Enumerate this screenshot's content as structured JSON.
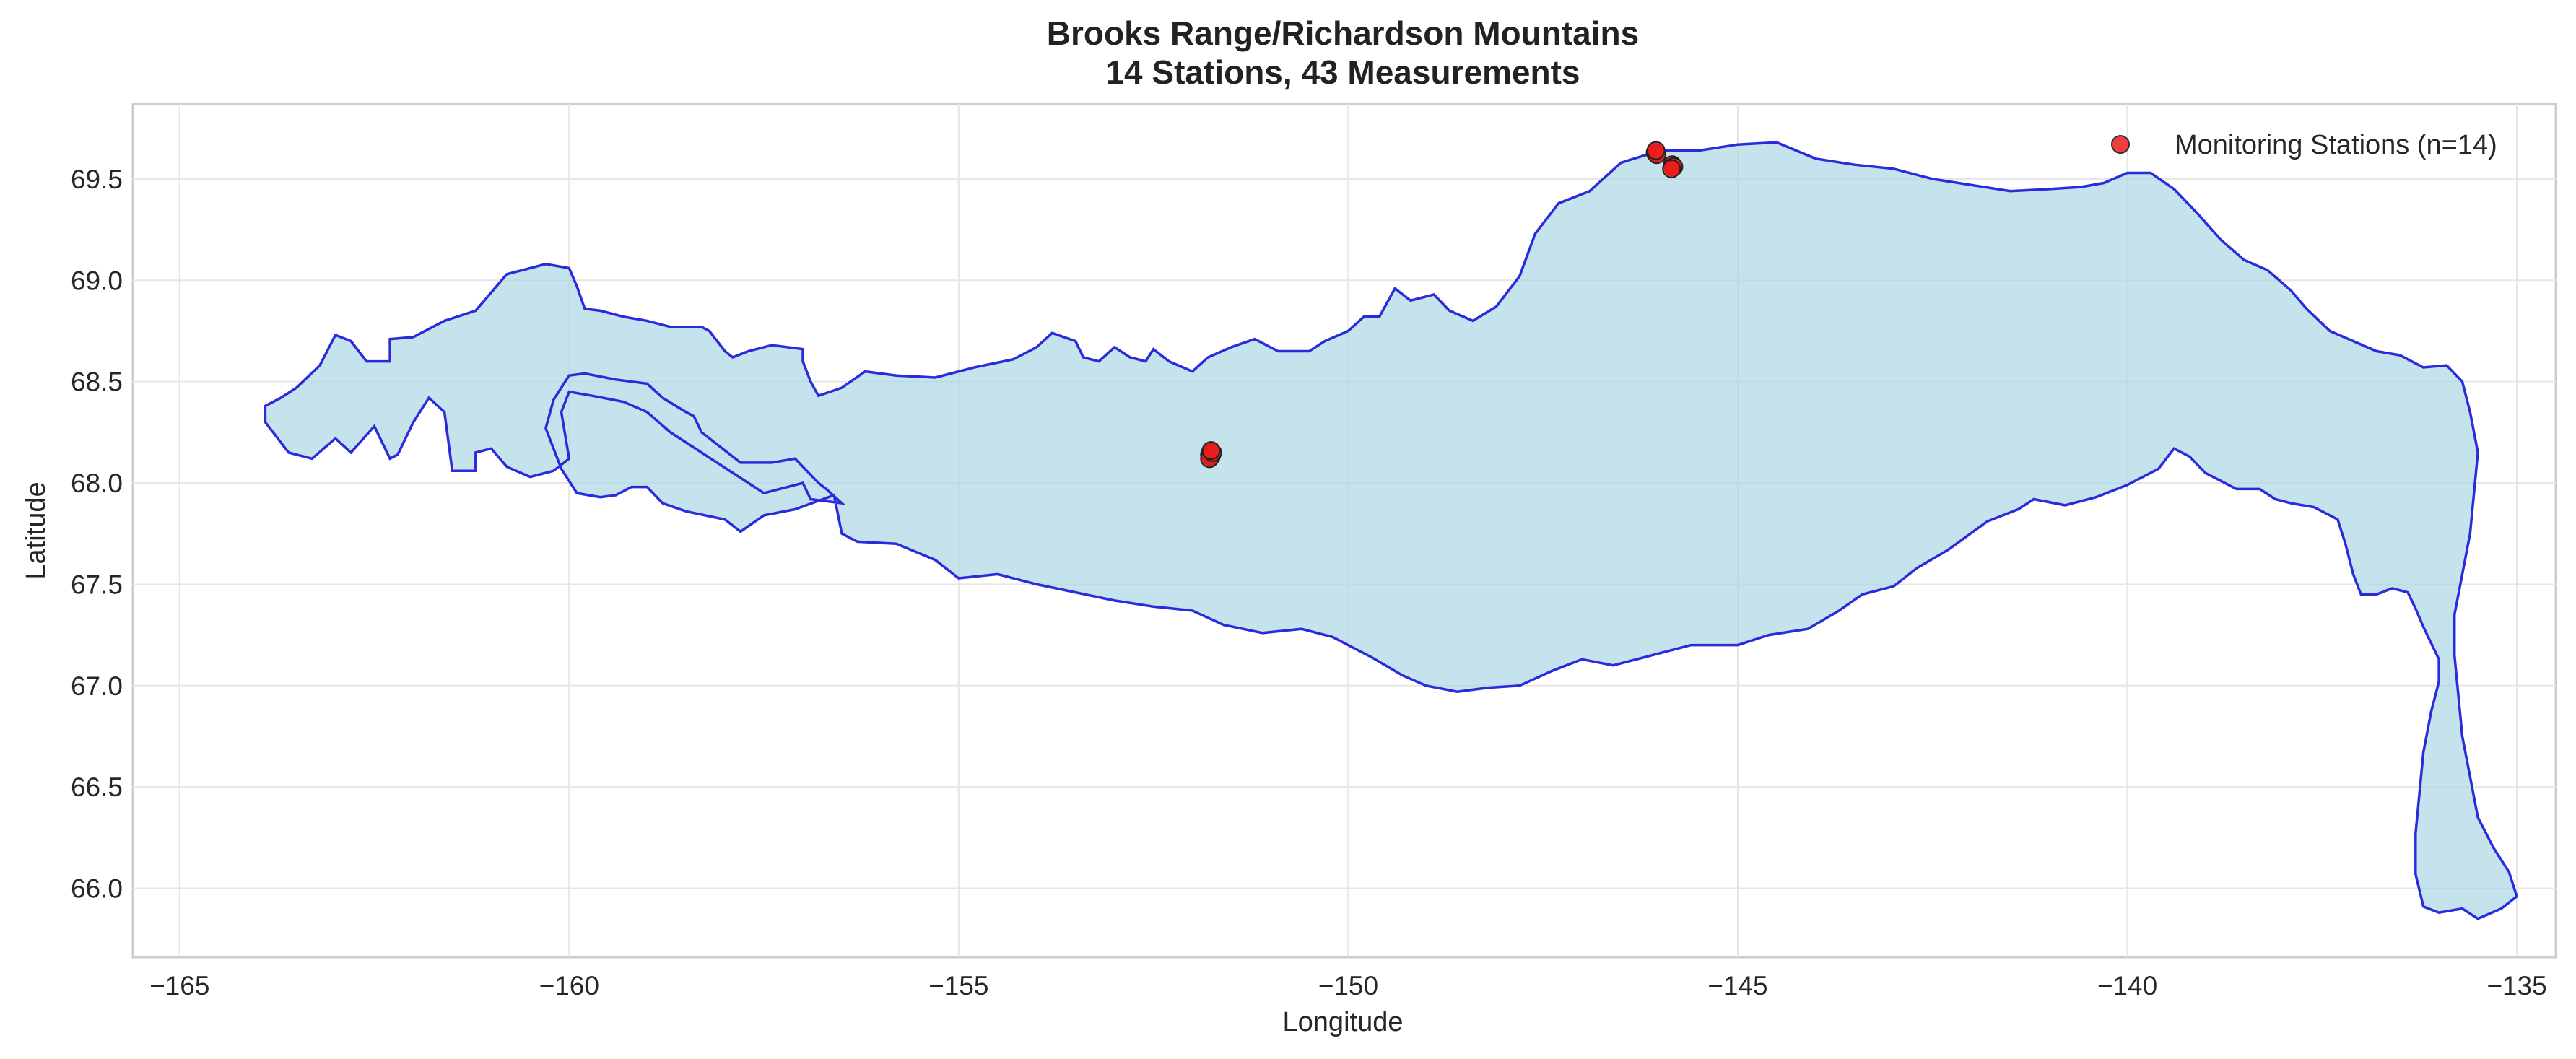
{
  "chart_data": {
    "type": "scatter",
    "title": "Brooks Range/Richardson Mountains",
    "subtitle": "14 Stations, 43 Measurements",
    "xlabel": "Longitude",
    "ylabel": "Latitude",
    "xlim": [
      -165.6,
      -134.5
    ],
    "ylim": [
      65.66,
      69.87
    ],
    "xticks": [
      -165,
      -160,
      -155,
      -150,
      -145,
      -140,
      -135
    ],
    "xtick_labels": [
      "−165",
      "−160",
      "−155",
      "−150",
      "−145",
      "−140",
      "−135"
    ],
    "yticks": [
      66.0,
      66.5,
      67.0,
      67.5,
      68.0,
      68.5,
      69.0,
      69.5
    ],
    "ytick_labels": [
      "66.0",
      "66.5",
      "67.0",
      "67.5",
      "68.0",
      "68.5",
      "69.0",
      "69.5"
    ],
    "grid": true,
    "legend_position": "upper-right",
    "series": [
      {
        "name": "Monitoring Stations (n=14)",
        "color": "#ee1c1c",
        "points": [
          {
            "lon": -146.06,
            "lat": 69.63
          },
          {
            "lon": -146.04,
            "lat": 69.62
          },
          {
            "lon": -145.84,
            "lat": 69.57
          },
          {
            "lon": -145.83,
            "lat": 69.56
          },
          {
            "lon": -145.82,
            "lat": 69.56
          },
          {
            "lon": -151.78,
            "lat": 68.14
          },
          {
            "lon": -151.77,
            "lat": 68.15
          },
          {
            "lon": -151.76,
            "lat": 68.13
          },
          {
            "lon": -151.75,
            "lat": 68.14
          },
          {
            "lon": -151.78,
            "lat": 68.12
          },
          {
            "lon": -151.74,
            "lat": 68.15
          },
          {
            "lon": -146.05,
            "lat": 69.64
          },
          {
            "lon": -145.85,
            "lat": 69.55
          },
          {
            "lon": -151.76,
            "lat": 68.16
          }
        ]
      }
    ],
    "region": {
      "fill_color": "#add8e6",
      "edge_color": "#2b2bdc",
      "boundary": [
        [
          -163.9,
          68.3
        ],
        [
          -163.6,
          68.15
        ],
        [
          -163.3,
          68.12
        ],
        [
          -163.0,
          68.22
        ],
        [
          -162.8,
          68.15
        ],
        [
          -162.5,
          68.28
        ],
        [
          -162.3,
          68.12
        ],
        [
          -162.2,
          68.14
        ],
        [
          -162.0,
          68.3
        ],
        [
          -161.8,
          68.42
        ],
        [
          -161.6,
          68.35
        ],
        [
          -161.5,
          68.06
        ],
        [
          -161.2,
          68.06
        ],
        [
          -161.2,
          68.15
        ],
        [
          -161.0,
          68.17
        ],
        [
          -160.8,
          68.08
        ],
        [
          -160.5,
          68.03
        ],
        [
          -160.2,
          68.06
        ],
        [
          -160.0,
          68.12
        ],
        [
          -160.1,
          68.35
        ],
        [
          -160.0,
          68.45
        ],
        [
          -159.7,
          68.43
        ],
        [
          -159.3,
          68.4
        ],
        [
          -159.0,
          68.35
        ],
        [
          -158.7,
          68.25
        ],
        [
          -158.3,
          68.15
        ],
        [
          -157.9,
          68.05
        ],
        [
          -157.5,
          67.95
        ],
        [
          -157.0,
          68.0
        ],
        [
          -156.9,
          67.92
        ],
        [
          -156.5,
          67.9
        ],
        [
          -156.7,
          67.97
        ],
        [
          -156.8,
          68.0
        ],
        [
          -157.1,
          68.12
        ],
        [
          -157.4,
          68.1
        ],
        [
          -157.8,
          68.1
        ],
        [
          -158.3,
          68.25
        ],
        [
          -158.4,
          68.33
        ],
        [
          -158.5,
          68.35
        ],
        [
          -158.8,
          68.42
        ],
        [
          -159.0,
          68.49
        ],
        [
          -159.4,
          68.51
        ],
        [
          -159.8,
          68.54
        ],
        [
          -160.0,
          68.53
        ],
        [
          -160.2,
          68.41
        ],
        [
          -160.3,
          68.27
        ],
        [
          -160.1,
          68.07
        ],
        [
          -159.9,
          67.95
        ],
        [
          -159.6,
          67.93
        ],
        [
          -159.4,
          67.94
        ],
        [
          -159.2,
          67.98
        ],
        [
          -159.0,
          67.98
        ],
        [
          -158.8,
          67.9
        ],
        [
          -158.5,
          67.86
        ],
        [
          -158.0,
          67.82
        ],
        [
          -157.8,
          67.76
        ],
        [
          -157.5,
          67.84
        ],
        [
          -157.1,
          67.87
        ],
        [
          -156.6,
          67.94
        ],
        [
          -156.5,
          67.75
        ],
        [
          -156.3,
          67.71
        ],
        [
          -155.8,
          67.7
        ],
        [
          -155.3,
          67.62
        ],
        [
          -155.0,
          67.53
        ],
        [
          -154.5,
          67.55
        ],
        [
          -154.0,
          67.5
        ],
        [
          -153.5,
          67.46
        ],
        [
          -153.0,
          67.42
        ],
        [
          -152.5,
          67.39
        ],
        [
          -152.0,
          67.37
        ],
        [
          -151.6,
          67.3
        ],
        [
          -151.1,
          67.26
        ],
        [
          -150.6,
          67.28
        ],
        [
          -150.2,
          67.24
        ],
        [
          -149.7,
          67.14
        ],
        [
          -149.3,
          67.05
        ],
        [
          -149.0,
          67.0
        ],
        [
          -148.6,
          66.97
        ],
        [
          -148.2,
          66.99
        ],
        [
          -147.8,
          67.0
        ],
        [
          -147.4,
          67.07
        ],
        [
          -147.0,
          67.13
        ],
        [
          -146.6,
          67.1
        ],
        [
          -146.1,
          67.15
        ],
        [
          -145.6,
          67.2
        ],
        [
          -145.0,
          67.2
        ],
        [
          -144.6,
          67.25
        ],
        [
          -144.1,
          67.28
        ],
        [
          -143.7,
          67.37
        ],
        [
          -143.4,
          67.45
        ],
        [
          -143.0,
          67.49
        ],
        [
          -142.7,
          67.58
        ],
        [
          -142.3,
          67.67
        ],
        [
          -141.8,
          67.81
        ],
        [
          -141.4,
          67.87
        ],
        [
          -141.2,
          67.92
        ],
        [
          -140.8,
          67.89
        ],
        [
          -140.4,
          67.93
        ],
        [
          -140.0,
          67.99
        ],
        [
          -139.6,
          68.07
        ],
        [
          -139.4,
          68.17
        ],
        [
          -139.2,
          68.13
        ],
        [
          -139.0,
          68.05
        ],
        [
          -138.8,
          68.01
        ],
        [
          -138.6,
          67.97
        ],
        [
          -138.3,
          67.97
        ],
        [
          -138.1,
          67.92
        ],
        [
          -137.9,
          67.9
        ],
        [
          -137.6,
          67.88
        ],
        [
          -137.3,
          67.82
        ],
        [
          -137.2,
          67.7
        ],
        [
          -137.1,
          67.55
        ],
        [
          -137.0,
          67.45
        ],
        [
          -136.8,
          67.45
        ],
        [
          -136.6,
          67.48
        ],
        [
          -136.4,
          67.46
        ],
        [
          -136.3,
          67.38
        ],
        [
          -136.2,
          67.29
        ],
        [
          -136.1,
          67.21
        ],
        [
          -136.0,
          67.13
        ],
        [
          -136.0,
          67.02
        ],
        [
          -136.1,
          66.87
        ],
        [
          -136.2,
          66.67
        ],
        [
          -136.25,
          66.47
        ],
        [
          -136.3,
          66.27
        ],
        [
          -136.3,
          66.07
        ],
        [
          -136.2,
          65.91
        ],
        [
          -136.0,
          65.88
        ],
        [
          -135.7,
          65.9
        ],
        [
          -135.5,
          65.85
        ],
        [
          -135.2,
          65.9
        ],
        [
          -135.0,
          65.96
        ],
        [
          -135.1,
          66.08
        ],
        [
          -135.3,
          66.2
        ],
        [
          -135.5,
          66.35
        ],
        [
          -135.6,
          66.55
        ],
        [
          -135.7,
          66.75
        ],
        [
          -135.75,
          66.95
        ],
        [
          -135.8,
          67.15
        ],
        [
          -135.8,
          67.35
        ],
        [
          -135.7,
          67.55
        ],
        [
          -135.6,
          67.75
        ],
        [
          -135.55,
          67.95
        ],
        [
          -135.5,
          68.15
        ],
        [
          -135.6,
          68.35
        ],
        [
          -135.7,
          68.5
        ],
        [
          -135.9,
          68.58
        ],
        [
          -136.2,
          68.57
        ],
        [
          -136.5,
          68.63
        ],
        [
          -136.8,
          68.65
        ],
        [
          -137.1,
          68.7
        ],
        [
          -137.4,
          68.75
        ],
        [
          -137.7,
          68.86
        ],
        [
          -137.9,
          68.95
        ],
        [
          -138.2,
          69.05
        ],
        [
          -138.5,
          69.1
        ],
        [
          -138.8,
          69.2
        ],
        [
          -139.1,
          69.33
        ],
        [
          -139.4,
          69.45
        ],
        [
          -139.7,
          69.53
        ],
        [
          -140.0,
          69.53
        ],
        [
          -140.3,
          69.48
        ],
        [
          -140.6,
          69.46
        ],
        [
          -141.0,
          69.45
        ],
        [
          -141.5,
          69.44
        ],
        [
          -142.0,
          69.47
        ],
        [
          -142.5,
          69.5
        ],
        [
          -143.0,
          69.55
        ],
        [
          -143.5,
          69.57
        ],
        [
          -144.0,
          69.6
        ],
        [
          -144.5,
          69.68
        ],
        [
          -145.0,
          69.67
        ],
        [
          -145.5,
          69.64
        ],
        [
          -146.0,
          69.64
        ],
        [
          -146.5,
          69.58
        ],
        [
          -146.9,
          69.44
        ],
        [
          -147.3,
          69.38
        ],
        [
          -147.6,
          69.23
        ],
        [
          -147.8,
          69.02
        ],
        [
          -148.1,
          68.87
        ],
        [
          -148.4,
          68.8
        ],
        [
          -148.7,
          68.85
        ],
        [
          -148.9,
          68.93
        ],
        [
          -149.2,
          68.9
        ],
        [
          -149.4,
          68.96
        ],
        [
          -149.6,
          68.82
        ],
        [
          -149.8,
          68.82
        ],
        [
          -150.0,
          68.75
        ],
        [
          -150.3,
          68.7
        ],
        [
          -150.5,
          68.65
        ],
        [
          -150.9,
          68.65
        ],
        [
          -151.2,
          68.71
        ],
        [
          -151.5,
          68.67
        ],
        [
          -151.8,
          68.62
        ],
        [
          -152.0,
          68.55
        ],
        [
          -152.3,
          68.6
        ],
        [
          -152.5,
          68.66
        ],
        [
          -152.6,
          68.6
        ],
        [
          -152.8,
          68.62
        ],
        [
          -153.0,
          68.67
        ],
        [
          -153.2,
          68.6
        ],
        [
          -153.4,
          68.62
        ],
        [
          -153.5,
          68.7
        ],
        [
          -153.8,
          68.74
        ],
        [
          -154.0,
          68.67
        ],
        [
          -154.3,
          68.61
        ],
        [
          -154.8,
          68.57
        ],
        [
          -155.3,
          68.52
        ],
        [
          -155.8,
          68.53
        ],
        [
          -156.2,
          68.55
        ],
        [
          -156.5,
          68.47
        ],
        [
          -156.8,
          68.43
        ],
        [
          -156.9,
          68.5
        ],
        [
          -157.0,
          68.6
        ],
        [
          -157.0,
          68.66
        ],
        [
          -157.4,
          68.68
        ],
        [
          -157.7,
          68.65
        ],
        [
          -157.9,
          68.62
        ],
        [
          -158.0,
          68.65
        ],
        [
          -158.2,
          68.75
        ],
        [
          -158.3,
          68.77
        ],
        [
          -158.7,
          68.77
        ],
        [
          -159.0,
          68.8
        ],
        [
          -159.3,
          68.82
        ],
        [
          -159.6,
          68.85
        ],
        [
          -159.8,
          68.86
        ],
        [
          -159.9,
          68.97
        ],
        [
          -160.0,
          69.06
        ],
        [
          -160.3,
          69.08
        ],
        [
          -160.5,
          69.06
        ],
        [
          -160.8,
          69.03
        ],
        [
          -161.0,
          68.94
        ],
        [
          -161.2,
          68.85
        ],
        [
          -161.6,
          68.8
        ],
        [
          -162.0,
          68.72
        ],
        [
          -162.3,
          68.71
        ],
        [
          -162.3,
          68.6
        ],
        [
          -162.6,
          68.6
        ],
        [
          -162.8,
          68.7
        ],
        [
          -163.0,
          68.73
        ],
        [
          -163.2,
          68.58
        ],
        [
          -163.5,
          68.47
        ],
        [
          -163.7,
          68.42
        ],
        [
          -163.9,
          68.38
        ]
      ]
    }
  }
}
